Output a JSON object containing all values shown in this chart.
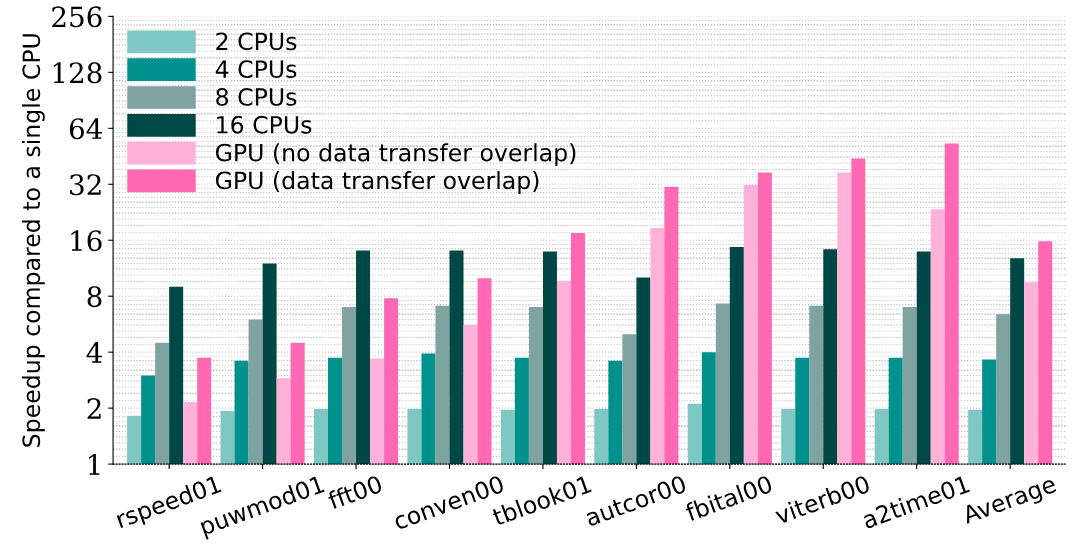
{
  "chart_data": {
    "type": "bar",
    "ylabel": "Speedup compared to a single CPU",
    "categories": [
      "rspeed01",
      "puwmod01",
      "fft00",
      "conven00",
      "tblook01",
      "autcor00",
      "fbital00",
      "viterb00",
      "a2time01",
      "Average"
    ],
    "series": [
      {
        "name": "2 CPUs",
        "color": "#7fc7c2",
        "values": [
          1.82,
          1.93,
          1.98,
          1.98,
          1.96,
          1.98,
          2.11,
          1.98,
          1.98,
          1.96
        ]
      },
      {
        "name": "4 CPUs",
        "color": "#00918c",
        "values": [
          3.0,
          3.6,
          3.73,
          3.93,
          3.73,
          3.6,
          4.0,
          3.73,
          3.73,
          3.65
        ]
      },
      {
        "name": "8 CPUs",
        "color": "#7fa3a1",
        "values": [
          4.5,
          6.0,
          7.0,
          7.1,
          7.0,
          5.0,
          7.3,
          7.1,
          7.0,
          6.4
        ]
      },
      {
        "name": "16 CPUs",
        "color": "#004846",
        "values": [
          9.0,
          12.0,
          14.1,
          14.1,
          13.9,
          10.1,
          14.7,
          14.3,
          13.9,
          12.8
        ]
      },
      {
        "name": "GPU (no data transfer overlap)",
        "color": "#ffb2d9",
        "values": [
          2.16,
          2.9,
          3.7,
          5.6,
          9.7,
          18.6,
          31.7,
          37,
          23.5,
          9.5
        ]
      },
      {
        "name": "GPU (data transfer overlap)",
        "color": "#ff69b4",
        "values": [
          3.73,
          4.5,
          7.8,
          10.0,
          17.5,
          31,
          37,
          44,
          53,
          15.8
        ]
      }
    ],
    "log": "y",
    "ylim": [
      1,
      256
    ],
    "yticks": [
      1,
      2,
      4,
      8,
      16,
      32,
      64,
      128,
      256
    ],
    "grid": "y",
    "legend": "top left"
  }
}
